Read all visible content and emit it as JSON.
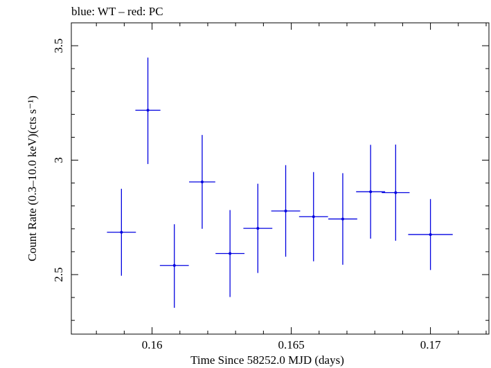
{
  "chart_data": {
    "type": "scatter",
    "title": "blue: WT – red: PC",
    "xlabel": "Time Since 58252.0 MJD (days)",
    "ylabel": "Count Rate (0.3–10.0 keV)(cts s⁻¹)",
    "xlim": [
      0.1571,
      0.1721
    ],
    "ylim": [
      2.24,
      3.6
    ],
    "x_ticks": [
      0.16,
      0.165,
      0.17
    ],
    "x_tick_labels": [
      "0.16",
      "0.165",
      "0.17"
    ],
    "y_ticks": [
      2.5,
      3,
      3.5
    ],
    "y_tick_labels": [
      "2.5",
      "3",
      "3.5"
    ],
    "grid": false,
    "series": [
      {
        "name": "WT",
        "color": "#0000e0",
        "points": [
          {
            "x": 0.1589,
            "y": 2.685,
            "xerr": 0.00052,
            "yerr_low": 0.19,
            "yerr_high": 0.19
          },
          {
            "x": 0.15985,
            "y": 3.218,
            "xerr": 0.00045,
            "yerr_low": 0.235,
            "yerr_high": 0.23
          },
          {
            "x": 0.1608,
            "y": 2.54,
            "xerr": 0.00052,
            "yerr_low": 0.185,
            "yerr_high": 0.18
          },
          {
            "x": 0.1618,
            "y": 2.905,
            "xerr": 0.00047,
            "yerr_low": 0.205,
            "yerr_high": 0.205
          },
          {
            "x": 0.1628,
            "y": 2.592,
            "xerr": 0.00052,
            "yerr_low": 0.19,
            "yerr_high": 0.19
          },
          {
            "x": 0.1638,
            "y": 2.702,
            "xerr": 0.00052,
            "yerr_low": 0.195,
            "yerr_high": 0.195
          },
          {
            "x": 0.1648,
            "y": 2.778,
            "xerr": 0.00052,
            "yerr_low": 0.2,
            "yerr_high": 0.2
          },
          {
            "x": 0.1658,
            "y": 2.753,
            "xerr": 0.00052,
            "yerr_low": 0.195,
            "yerr_high": 0.195
          },
          {
            "x": 0.16685,
            "y": 2.743,
            "xerr": 0.00052,
            "yerr_low": 0.2,
            "yerr_high": 0.2
          },
          {
            "x": 0.16785,
            "y": 2.862,
            "xerr": 0.00052,
            "yerr_low": 0.205,
            "yerr_high": 0.205
          },
          {
            "x": 0.16875,
            "y": 2.858,
            "xerr": 0.0005,
            "yerr_low": 0.21,
            "yerr_high": 0.21
          },
          {
            "x": 0.17,
            "y": 2.675,
            "xerr": 0.0008,
            "yerr_low": 0.155,
            "yerr_high": 0.155
          }
        ]
      }
    ]
  }
}
